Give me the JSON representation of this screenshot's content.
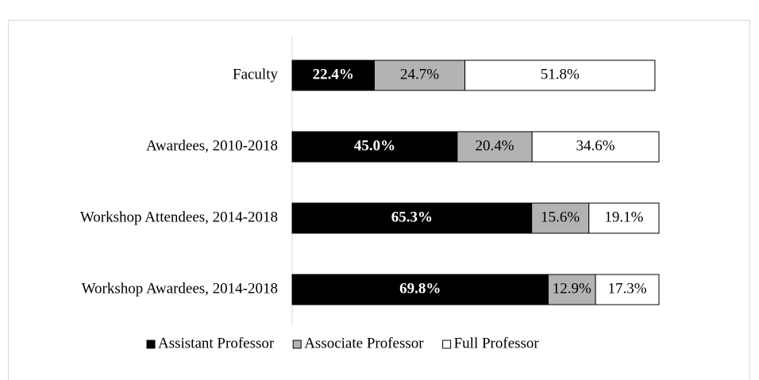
{
  "chart_data": {
    "type": "stacked-barh",
    "categories": [
      "Faculty",
      "Awardees, 2010-2018",
      "Workshop Attendees, 2014-2018",
      "Workshop Awardees, 2014-2018"
    ],
    "series": [
      {
        "name": "Assistant Professor",
        "color": "#000000",
        "values": [
          22.4,
          45,
          65.3,
          69.8
        ],
        "value_labels": [
          "22.4%",
          "45.0%",
          "65.3%",
          "69.8%"
        ]
      },
      {
        "name": "Associate Professor",
        "color": "#b3b3b3",
        "values": [
          24.7,
          20.4,
          15.6,
          12.9
        ],
        "value_labels": [
          "24.7%",
          "20.4%",
          "15.6%",
          "12.9%"
        ]
      },
      {
        "name": "Full Professor",
        "color": "#ffffff",
        "values": [
          51.8,
          34.6,
          19.1,
          17.3
        ],
        "value_labels": [
          "51.8%",
          "34.6%",
          "19.1%",
          "17.3%"
        ]
      }
    ],
    "xlim": [
      0,
      100
    ],
    "legend": "bottom"
  }
}
